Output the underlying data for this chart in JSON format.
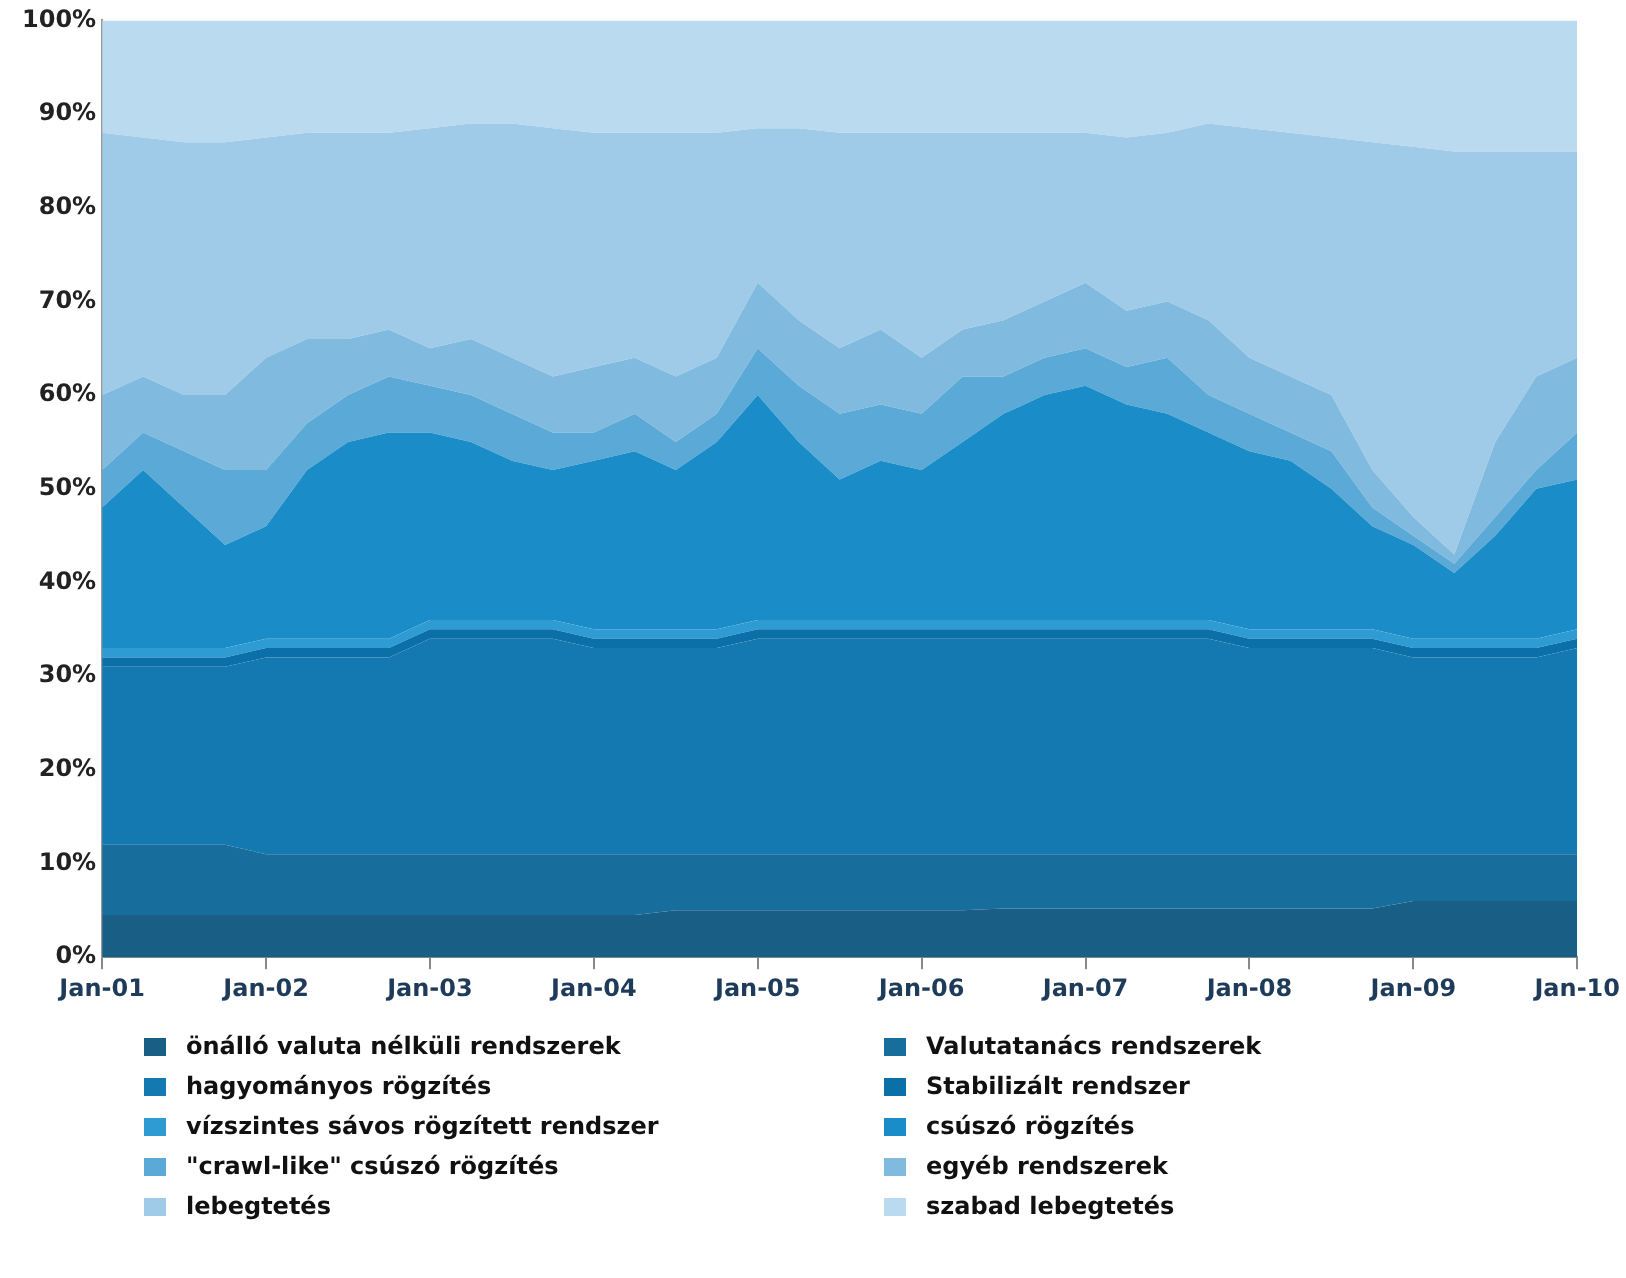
{
  "chart_data": {
    "type": "area",
    "stacked": true,
    "legend": "bottom",
    "grid": false,
    "marker": "none",
    "x": [
      "2001-01",
      "2001-04",
      "2001-07",
      "2001-10",
      "2002-01",
      "2002-04",
      "2002-07",
      "2002-10",
      "2003-01",
      "2003-04",
      "2003-07",
      "2003-10",
      "2004-01",
      "2004-04",
      "2004-07",
      "2004-10",
      "2005-01",
      "2005-04",
      "2005-07",
      "2005-10",
      "2006-01",
      "2006-04",
      "2006-07",
      "2006-10",
      "2007-01",
      "2007-04",
      "2007-07",
      "2007-10",
      "2008-01",
      "2008-04",
      "2008-07",
      "2008-10",
      "2009-01",
      "2009-04",
      "2009-07",
      "2009-10",
      "2010-01"
    ],
    "xlim": [
      "2001-01",
      "2010-01"
    ],
    "xticks": [
      {
        "value": "2001-01",
        "label": "Jan-01"
      },
      {
        "value": "2002-01",
        "label": "Jan-02"
      },
      {
        "value": "2003-01",
        "label": "Jan-03"
      },
      {
        "value": "2004-01",
        "label": "Jan-04"
      },
      {
        "value": "2005-01",
        "label": "Jan-05"
      },
      {
        "value": "2006-01",
        "label": "Jan-06"
      },
      {
        "value": "2007-01",
        "label": "Jan-07"
      },
      {
        "value": "2008-01",
        "label": "Jan-08"
      },
      {
        "value": "2009-01",
        "label": "Jan-09"
      },
      {
        "value": "2010-01",
        "label": "Jan-10"
      }
    ],
    "ylim": [
      0,
      100
    ],
    "yticks": [
      {
        "value": 0,
        "label": "0%"
      },
      {
        "value": 10,
        "label": "10%"
      },
      {
        "value": 20,
        "label": "20%"
      },
      {
        "value": 30,
        "label": "30%"
      },
      {
        "value": 40,
        "label": "40%"
      },
      {
        "value": 50,
        "label": "50%"
      },
      {
        "value": 60,
        "label": "60%"
      },
      {
        "value": 70,
        "label": "70%"
      },
      {
        "value": 80,
        "label": "80%"
      },
      {
        "value": 90,
        "label": "90%"
      },
      {
        "value": 100,
        "label": "100%"
      }
    ],
    "series": [
      {
        "name": "önálló valuta nélküli rendszerek",
        "color": "#195e85",
        "values": [
          4.5,
          4.5,
          4.5,
          4.5,
          4.5,
          4.5,
          4.5,
          4.5,
          4.5,
          4.5,
          4.5,
          4.5,
          4.5,
          4.5,
          5,
          5,
          5,
          5,
          5,
          5,
          5,
          5,
          5.2,
          5.2,
          5.2,
          5.2,
          5.2,
          5.2,
          5.2,
          5.2,
          5.2,
          5.2,
          6,
          6,
          6,
          6,
          6
        ]
      },
      {
        "name": "Valutatanács rendszerek",
        "color": "#176d9b",
        "values": [
          7.5,
          7.5,
          7.5,
          7.5,
          6.5,
          6.5,
          6.5,
          6.5,
          6.5,
          6.5,
          6.5,
          6.5,
          6.5,
          6.5,
          6,
          6,
          6,
          6,
          6,
          6,
          6,
          6,
          5.8,
          5.8,
          5.8,
          5.8,
          5.8,
          5.8,
          5.8,
          5.8,
          5.8,
          5.8,
          5,
          5,
          5,
          5,
          5
        ]
      },
      {
        "name": "hagyományos rögzítés",
        "color": "#1479b0",
        "values": [
          19,
          19,
          19,
          19,
          21,
          21,
          21,
          21,
          23,
          23,
          23,
          23,
          22,
          22,
          22,
          22,
          23,
          23,
          23,
          23,
          23,
          23,
          23,
          23,
          23,
          23,
          23,
          23,
          22,
          22,
          22,
          22,
          21,
          21,
          21,
          21,
          22
        ]
      },
      {
        "name": "Stabilizált rendszer",
        "color": "#0b6fa8",
        "values": [
          1,
          1,
          1,
          1,
          1,
          1,
          1,
          1,
          1,
          1,
          1,
          1,
          1,
          1,
          1,
          1,
          1,
          1,
          1,
          1,
          1,
          1,
          1,
          1,
          1,
          1,
          1,
          1,
          1,
          1,
          1,
          1,
          1,
          1,
          1,
          1,
          1
        ]
      },
      {
        "name": "vízszintes sávos rögzített rendszer",
        "color": "#2f9bd3",
        "values": [
          1,
          1,
          1,
          1,
          1,
          1,
          1,
          1,
          1,
          1,
          1,
          1,
          1,
          1,
          1,
          1,
          1,
          1,
          1,
          1,
          1,
          1,
          1,
          1,
          1,
          1,
          1,
          1,
          1,
          1,
          1,
          1,
          1,
          1,
          1,
          1,
          1
        ]
      },
      {
        "name": "csúszó rögzítés",
        "color": "#1a8cc8",
        "values": [
          15,
          19,
          15,
          11,
          12,
          18,
          21,
          22,
          20,
          19,
          17,
          16,
          18,
          19,
          17,
          20,
          24,
          19,
          15,
          17,
          16,
          19,
          22,
          24,
          25,
          23,
          22,
          20,
          19,
          18,
          15,
          11,
          10,
          7,
          11,
          16,
          16
        ]
      },
      {
        "name": "\"crawl-like\" csúszó rögzítés",
        "color": "#5aa9d6",
        "values": [
          4,
          4,
          6,
          8,
          6,
          5,
          5,
          6,
          5,
          5,
          5,
          4,
          3,
          4,
          3,
          3,
          5,
          6,
          7,
          6,
          6,
          7,
          4,
          4,
          4,
          4,
          6,
          4,
          4,
          3,
          4,
          2,
          1,
          1,
          2,
          2,
          5
        ]
      },
      {
        "name": "egyéb rendszerek",
        "color": "#80bbdf",
        "values": [
          8,
          6,
          6,
          8,
          12,
          9,
          6,
          5,
          4,
          6,
          6,
          6,
          7,
          6,
          7,
          6,
          7,
          7,
          7,
          8,
          6,
          5,
          6,
          6,
          7,
          6,
          6,
          8,
          6,
          6,
          6,
          4,
          2,
          1,
          8,
          10,
          8
        ]
      },
      {
        "name": "lebegtetés",
        "color": "#9fcbe8",
        "values": [
          28,
          25.5,
          27,
          27,
          23.5,
          22,
          22,
          21,
          23.5,
          23,
          25,
          26.5,
          25,
          24,
          26,
          24,
          16.5,
          20.5,
          23,
          21,
          24,
          21,
          20,
          18,
          16,
          18.5,
          18,
          21,
          24.5,
          26,
          27.5,
          35,
          39.5,
          43,
          31,
          24,
          22
        ]
      },
      {
        "name": "szabad lebegtetés",
        "color": "#b9daef",
        "values": [
          12,
          12.5,
          13,
          13,
          12.5,
          12,
          12,
          12,
          11.5,
          11,
          11,
          11.5,
          12,
          12,
          12,
          12,
          11.5,
          11.5,
          12,
          12,
          12,
          12,
          12,
          12,
          12,
          12.5,
          12,
          11,
          11.5,
          12,
          12.5,
          13,
          13.5,
          14,
          14,
          14,
          14
        ]
      }
    ]
  }
}
